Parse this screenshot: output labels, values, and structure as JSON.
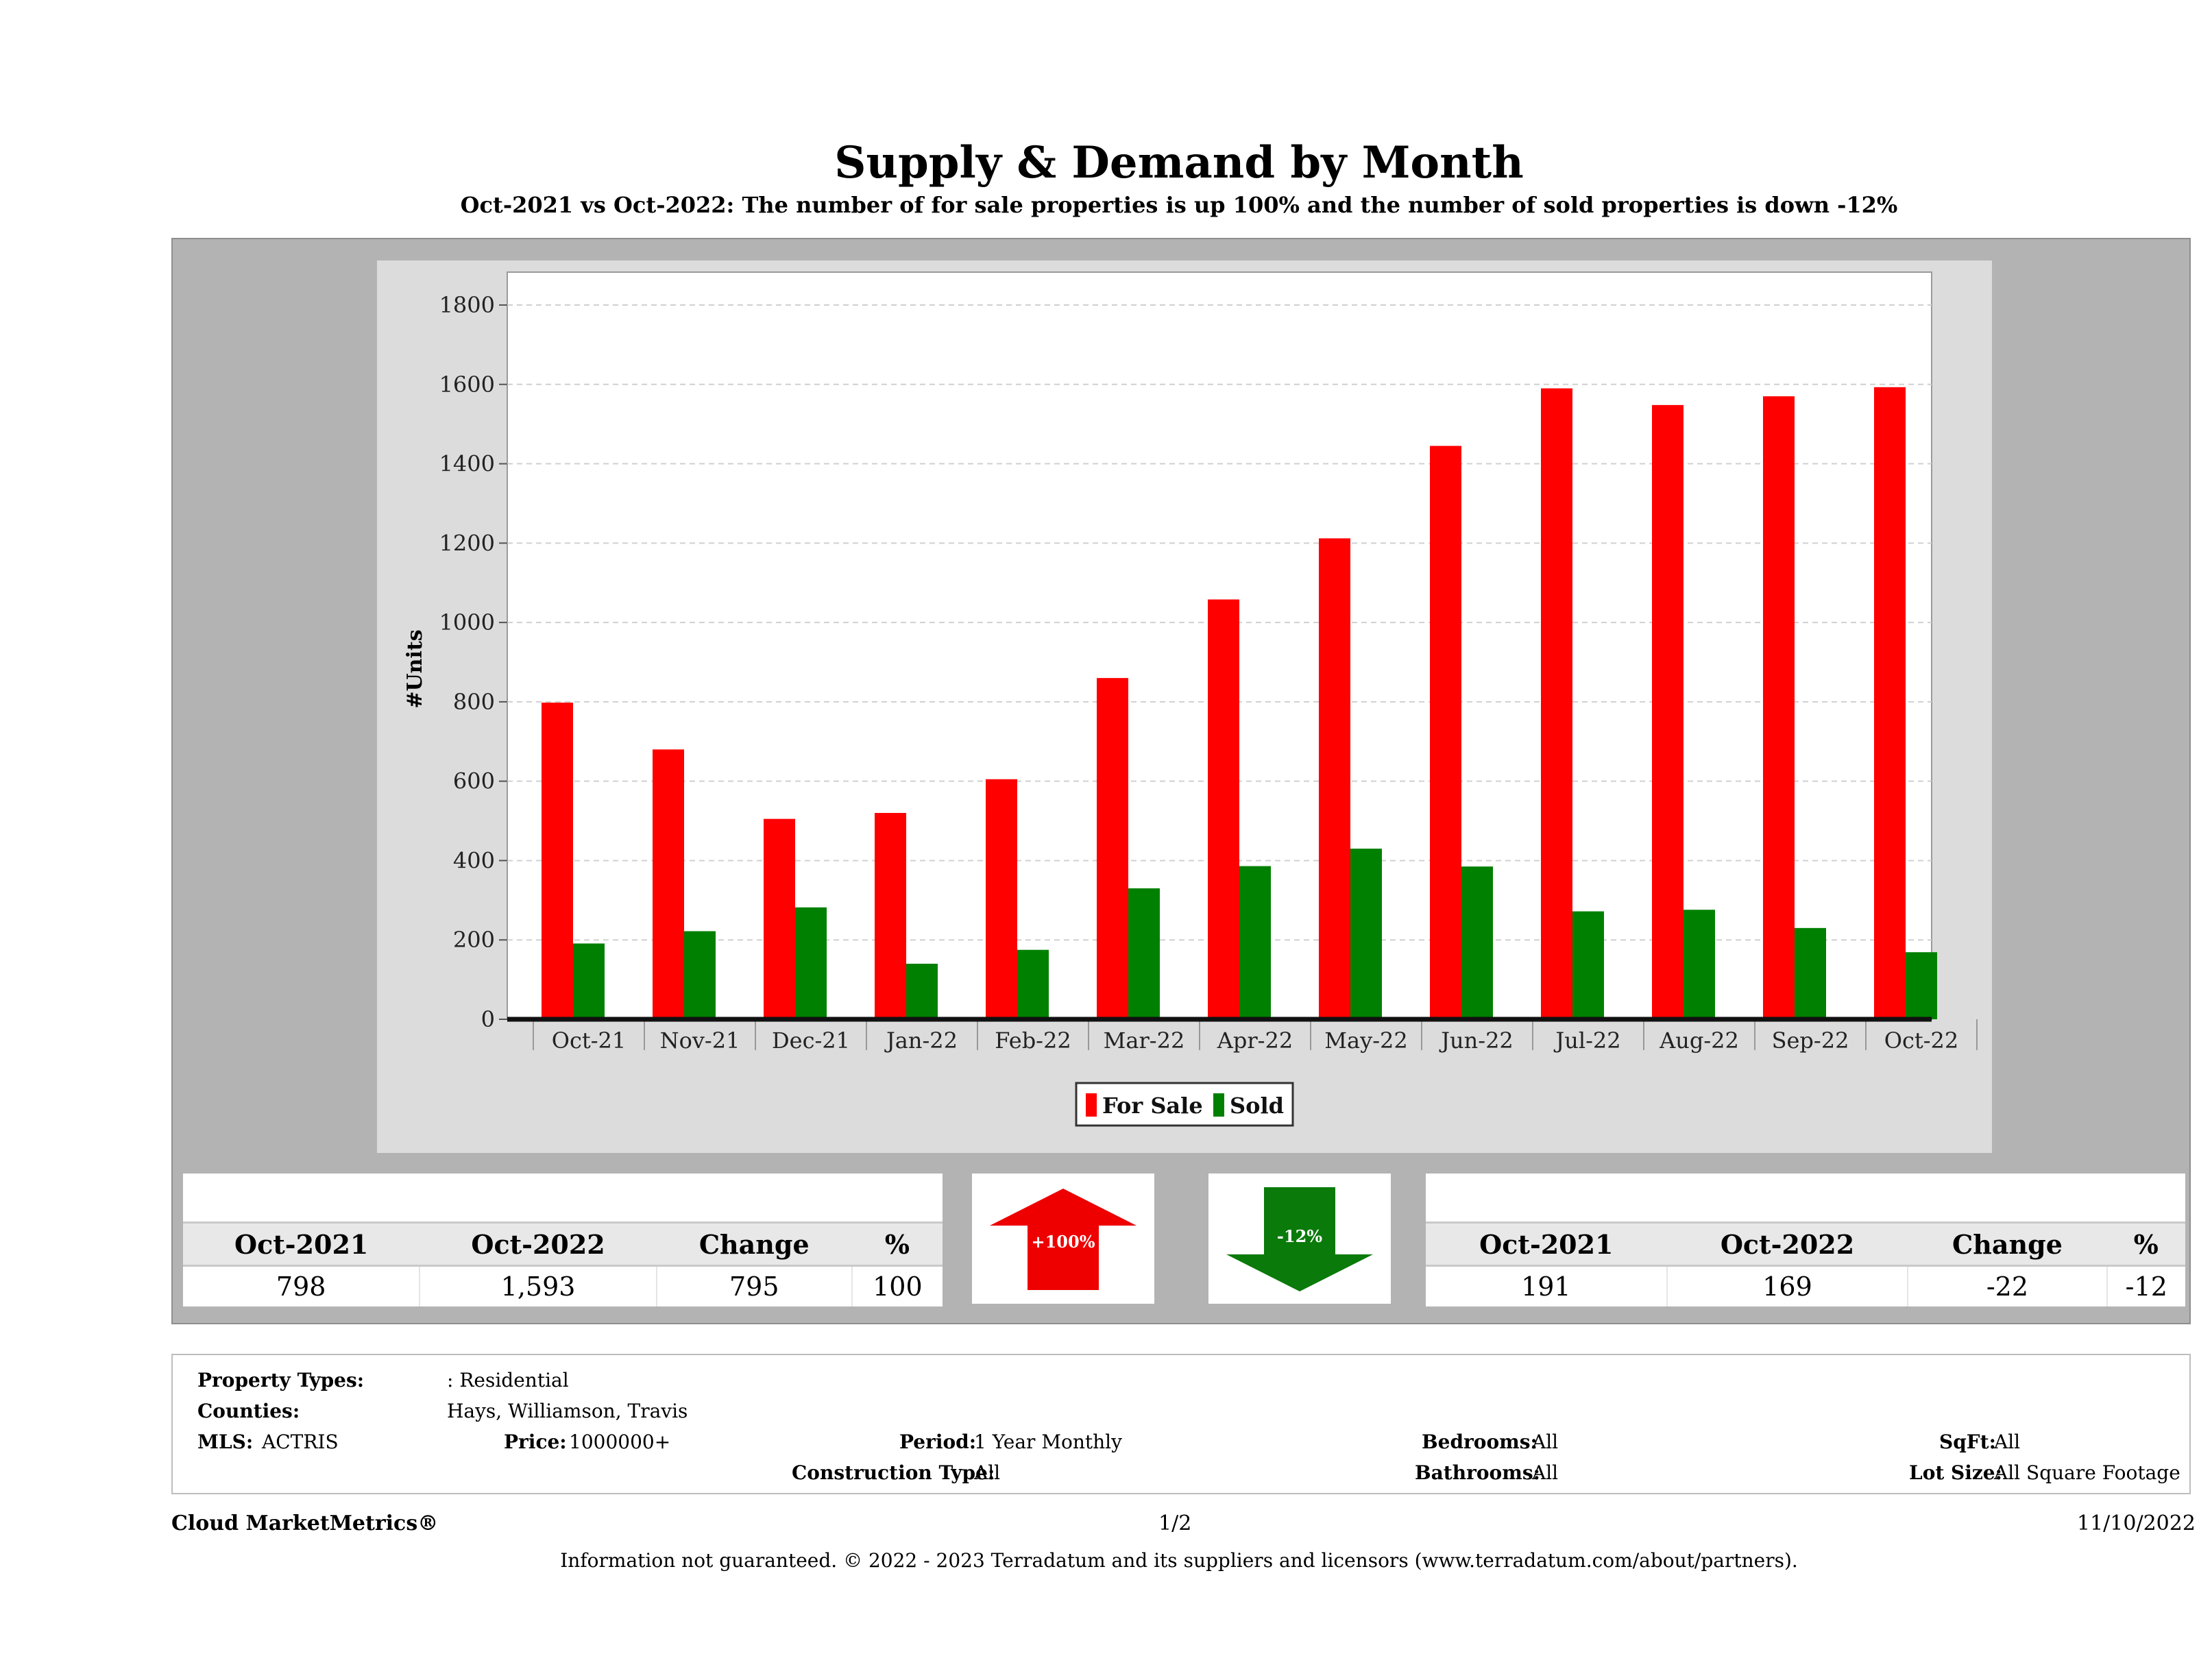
{
  "title": "Supply & Demand by Month",
  "subtitle": "Oct-2021 vs Oct-2022: The number of for sale properties is up 100% and the number of sold properties is down -12%",
  "chart_data": {
    "type": "bar",
    "categories": [
      "Oct-21",
      "Nov-21",
      "Dec-21",
      "Jan-22",
      "Feb-22",
      "Mar-22",
      "Apr-22",
      "May-22",
      "Jun-22",
      "Jul-22",
      "Aug-22",
      "Sep-22",
      "Oct-22"
    ],
    "series": [
      {
        "name": "For Sale",
        "color": "#ff0000",
        "values": [
          798,
          680,
          505,
          520,
          605,
          860,
          1058,
          1212,
          1445,
          1590,
          1548,
          1570,
          1593
        ]
      },
      {
        "name": "Sold",
        "color": "#008000",
        "values": [
          191,
          222,
          282,
          140,
          175,
          330,
          386,
          430,
          385,
          272,
          276,
          230,
          169
        ]
      }
    ],
    "ylabel": "#Units",
    "xlabel": "",
    "ylim": [
      0,
      1800
    ],
    "yticks": [
      0,
      200,
      400,
      600,
      800,
      1000,
      1200,
      1400,
      1600,
      1800
    ],
    "grid": true,
    "legend": "bottom-center"
  },
  "for_sale_stats": {
    "headers": [
      "Oct-2021",
      "Oct-2022",
      "Change",
      "%"
    ],
    "values": [
      "798",
      "1,593",
      "795",
      "100"
    ],
    "arrow_label": "+100%",
    "arrow_color": "#ee0000"
  },
  "sold_stats": {
    "headers": [
      "Oct-2021",
      "Oct-2022",
      "Change",
      "%"
    ],
    "values": [
      "191",
      "169",
      "-22",
      "-12"
    ],
    "arrow_label": "-12%",
    "arrow_color": "#0a7a0a"
  },
  "info": {
    "property_types_label": "Property Types:",
    "property_types_value": ": Residential",
    "counties_label": "Counties:",
    "counties_value": "Hays, Williamson, Travis",
    "mls_label": "MLS:",
    "mls_value": "ACTRIS",
    "price_label": "Price:",
    "price_value": "1000000+",
    "period_label": "Period:",
    "period_value": "1 Year Monthly",
    "construction_label": "Construction Type:",
    "construction_value": "All",
    "bedrooms_label": "Bedrooms:",
    "bedrooms_value": "All",
    "bathrooms_label": "Bathrooms:",
    "bathrooms_value": "All",
    "sqft_label": "SqFt:",
    "sqft_value": "All",
    "lot_label": "Lot Size:",
    "lot_value": "All Square Footage"
  },
  "footer": {
    "brand": "Cloud MarketMetrics®",
    "page": "1/2",
    "date": "11/10/2022",
    "disclaimer": "Information not guaranteed. © 2022 - 2023 Terradatum and its suppliers and licensors (www.terradatum.com/about/partners)."
  }
}
